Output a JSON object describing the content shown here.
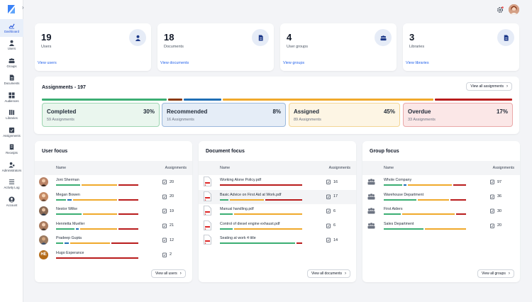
{
  "sidebar": {
    "items": [
      {
        "label": "Dashboard",
        "icon": "dashboard-icon"
      },
      {
        "label": "Users",
        "icon": "user-icon"
      },
      {
        "label": "Groups",
        "icon": "groups-icon"
      },
      {
        "label": "Documents",
        "icon": "document-icon"
      },
      {
        "label": "Audiences",
        "icon": "audiences-icon"
      },
      {
        "label": "Libraries",
        "icon": "libraries-icon"
      },
      {
        "label": "Assignments",
        "icon": "assignments-icon"
      },
      {
        "label": "Receipts",
        "icon": "receipts-icon"
      },
      {
        "label": "Administrators",
        "icon": "administrators-icon"
      },
      {
        "label": "Activity Log",
        "icon": "activity-log-icon"
      },
      {
        "label": "Account",
        "icon": "account-icon"
      }
    ]
  },
  "stats": [
    {
      "value": "19",
      "label": "Users",
      "link": "View users",
      "icon": "user-icon"
    },
    {
      "value": "18",
      "label": "Documents",
      "link": "View documents",
      "icon": "document-icon"
    },
    {
      "value": "4",
      "label": "User groups",
      "link": "View groups",
      "icon": "groups-icon"
    },
    {
      "value": "3",
      "label": "Libraries",
      "link": "View libraries",
      "icon": "libraries-icon"
    }
  ],
  "assignments": {
    "title": "Assignments - 197",
    "view_all": "View all assignments",
    "boxes": [
      {
        "label": "Completed",
        "percent": "30%",
        "sub": "59 Assignments"
      },
      {
        "label": "Recommended",
        "percent": "8%",
        "sub": "16 Assignments"
      },
      {
        "label": "Assigned",
        "percent": "45%",
        "sub": "89 Assignments"
      },
      {
        "label": "Overdue",
        "percent": "17%",
        "sub": "33 Assignments"
      }
    ]
  },
  "colors": {
    "completed": "#3cae73",
    "recommended": "#1f6fb5",
    "assigned": "#f0a92b",
    "overdue": "#b91c1c",
    "brown": "#8b3a0f"
  },
  "user_focus": {
    "title": "User focus",
    "col_name": "Name",
    "col_assignments": "Assignments",
    "view_all": "View all users",
    "rows": [
      {
        "name": "Joni Sherman",
        "count": "20"
      },
      {
        "name": "Megan Bowen",
        "count": "20"
      },
      {
        "name": "Nestor Wilke",
        "count": "19"
      },
      {
        "name": "Henrietta Mueller",
        "count": "21"
      },
      {
        "name": "Pradeep Gupta",
        "count": "12"
      },
      {
        "name": "Hugo Esperance",
        "count": "2",
        "initials": "HE"
      }
    ]
  },
  "document_focus": {
    "title": "Document focus",
    "col_name": "Name",
    "col_assignments": "Assignments",
    "view_all": "View all documents",
    "rows": [
      {
        "name": "Working Alone Policy.pdf",
        "count": "16"
      },
      {
        "name": "Basic Advice on First Aid at Work.pdf",
        "count": "17"
      },
      {
        "name": "Manual handling.pdf",
        "count": "6"
      },
      {
        "name": "Control of diesel engine exhaust.pdf",
        "count": "6"
      },
      {
        "name": "Seating at work 4 title",
        "count": "14"
      }
    ]
  },
  "group_focus": {
    "title": "Group focus",
    "col_name": "Name",
    "col_assignments": "Assignments",
    "view_all": "View all groups",
    "rows": [
      {
        "name": "Whole Company",
        "count": "97"
      },
      {
        "name": "Warehouse Department",
        "count": "36"
      },
      {
        "name": "First Aiders",
        "count": "30"
      },
      {
        "name": "Sales Department",
        "count": "20"
      }
    ]
  }
}
